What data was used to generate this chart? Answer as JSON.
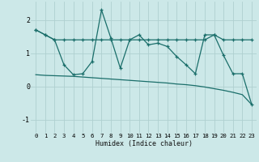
{
  "xlabel": "Humidex (Indice chaleur)",
  "bg_color": "#cce8e8",
  "grid_color": "#afd0d0",
  "line_color": "#1a6e6a",
  "xlim": [
    -0.5,
    23.5
  ],
  "ylim": [
    -1.4,
    2.55
  ],
  "xticks": [
    0,
    1,
    2,
    3,
    4,
    5,
    6,
    7,
    8,
    9,
    10,
    11,
    12,
    13,
    14,
    15,
    16,
    17,
    18,
    19,
    20,
    21,
    22,
    23
  ],
  "yticks": [
    -1,
    0,
    1,
    2
  ],
  "line1_x": [
    0,
    1,
    2,
    3,
    4,
    5,
    6,
    7,
    8,
    9,
    10,
    11,
    12,
    13,
    14,
    15,
    16,
    17,
    18,
    19,
    20,
    21,
    22,
    23
  ],
  "line1_y": [
    1.7,
    1.55,
    1.4,
    1.4,
    1.4,
    1.4,
    1.4,
    1.4,
    1.4,
    1.4,
    1.4,
    1.4,
    1.4,
    1.4,
    1.4,
    1.4,
    1.4,
    1.4,
    1.4,
    1.55,
    1.4,
    1.4,
    1.4,
    1.4
  ],
  "line2_x": [
    0,
    1,
    2,
    3,
    4,
    5,
    6,
    7,
    8,
    9,
    10,
    11,
    12,
    13,
    14,
    15,
    16,
    17,
    18,
    19,
    20,
    21,
    22,
    23
  ],
  "line2_y": [
    1.7,
    1.55,
    1.4,
    0.65,
    0.35,
    0.38,
    0.75,
    2.3,
    1.45,
    0.55,
    1.4,
    1.55,
    1.25,
    1.3,
    1.2,
    0.9,
    0.65,
    0.38,
    1.55,
    1.55,
    0.93,
    0.38,
    0.38,
    -0.55
  ],
  "line3_x": [
    0,
    1,
    2,
    3,
    4,
    5,
    6,
    7,
    8,
    9,
    10,
    11,
    12,
    13,
    14,
    15,
    16,
    17,
    18,
    19,
    20,
    21,
    22,
    23
  ],
  "line3_y": [
    0.35,
    0.33,
    0.32,
    0.31,
    0.3,
    0.28,
    0.26,
    0.24,
    0.22,
    0.2,
    0.18,
    0.16,
    0.14,
    0.12,
    0.1,
    0.07,
    0.05,
    0.02,
    -0.02,
    -0.07,
    -0.12,
    -0.18,
    -0.25,
    -0.55
  ]
}
